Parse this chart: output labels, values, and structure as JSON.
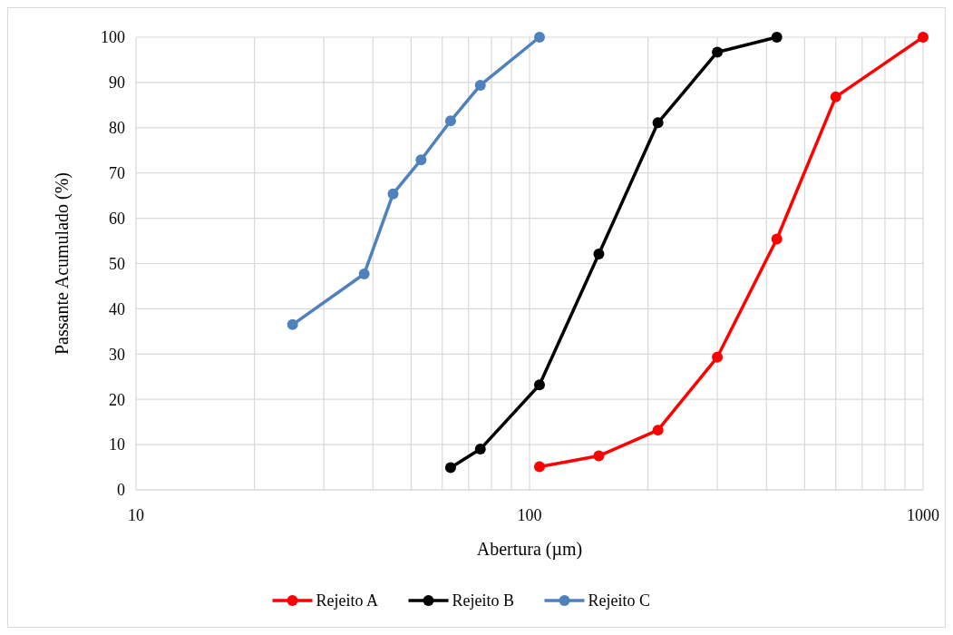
{
  "chart_data": {
    "type": "line",
    "xlabel": "Abertura (µm)",
    "ylabel": "Passante Acumulado (%)",
    "log": "x",
    "xlim": [
      10,
      1000
    ],
    "ylim": [
      0,
      100
    ],
    "xticks": [
      10,
      {
        "value": 20,
        "label": null
      },
      {
        "value": 30,
        "label": null
      },
      {
        "value": 40,
        "label": null
      },
      {
        "value": 50,
        "label": null
      },
      {
        "value": 60,
        "label": null
      },
      {
        "value": 70,
        "label": null
      },
      {
        "value": 80,
        "label": null
      },
      {
        "value": 90,
        "label": null
      },
      100,
      {
        "value": 200,
        "label": null
      },
      {
        "value": 300,
        "label": null
      },
      {
        "value": 400,
        "label": null
      },
      {
        "value": 500,
        "label": null
      },
      {
        "value": 600,
        "label": null
      },
      {
        "value": 700,
        "label": null
      },
      {
        "value": 800,
        "label": null
      },
      {
        "value": 900,
        "label": null
      },
      1000
    ],
    "yticks": [
      0,
      10,
      20,
      30,
      40,
      50,
      60,
      70,
      80,
      90,
      100
    ],
    "grid": true,
    "legend": "bottom",
    "marker": "circle",
    "line_style": "solid",
    "series": [
      {
        "name": "Rejeito A",
        "color": "#ff0000",
        "x": [
          106,
          150,
          212,
          300,
          425,
          600,
          1000
        ],
        "values": [
          5.1,
          7.5,
          13.2,
          29.3,
          55.4,
          86.8,
          100
        ]
      },
      {
        "name": "Rejeito B",
        "color": "#000000",
        "x": [
          63,
          75,
          106,
          150,
          212,
          300,
          425
        ],
        "values": [
          4.9,
          9.0,
          23.2,
          52.1,
          81.1,
          96.7,
          100
        ]
      },
      {
        "name": "Rejeito C",
        "color": "#4f81bd",
        "x": [
          25,
          38,
          45,
          53,
          63,
          75,
          106
        ],
        "values": [
          36.5,
          47.7,
          65.4,
          72.9,
          81.5,
          89.4,
          100
        ]
      }
    ]
  }
}
